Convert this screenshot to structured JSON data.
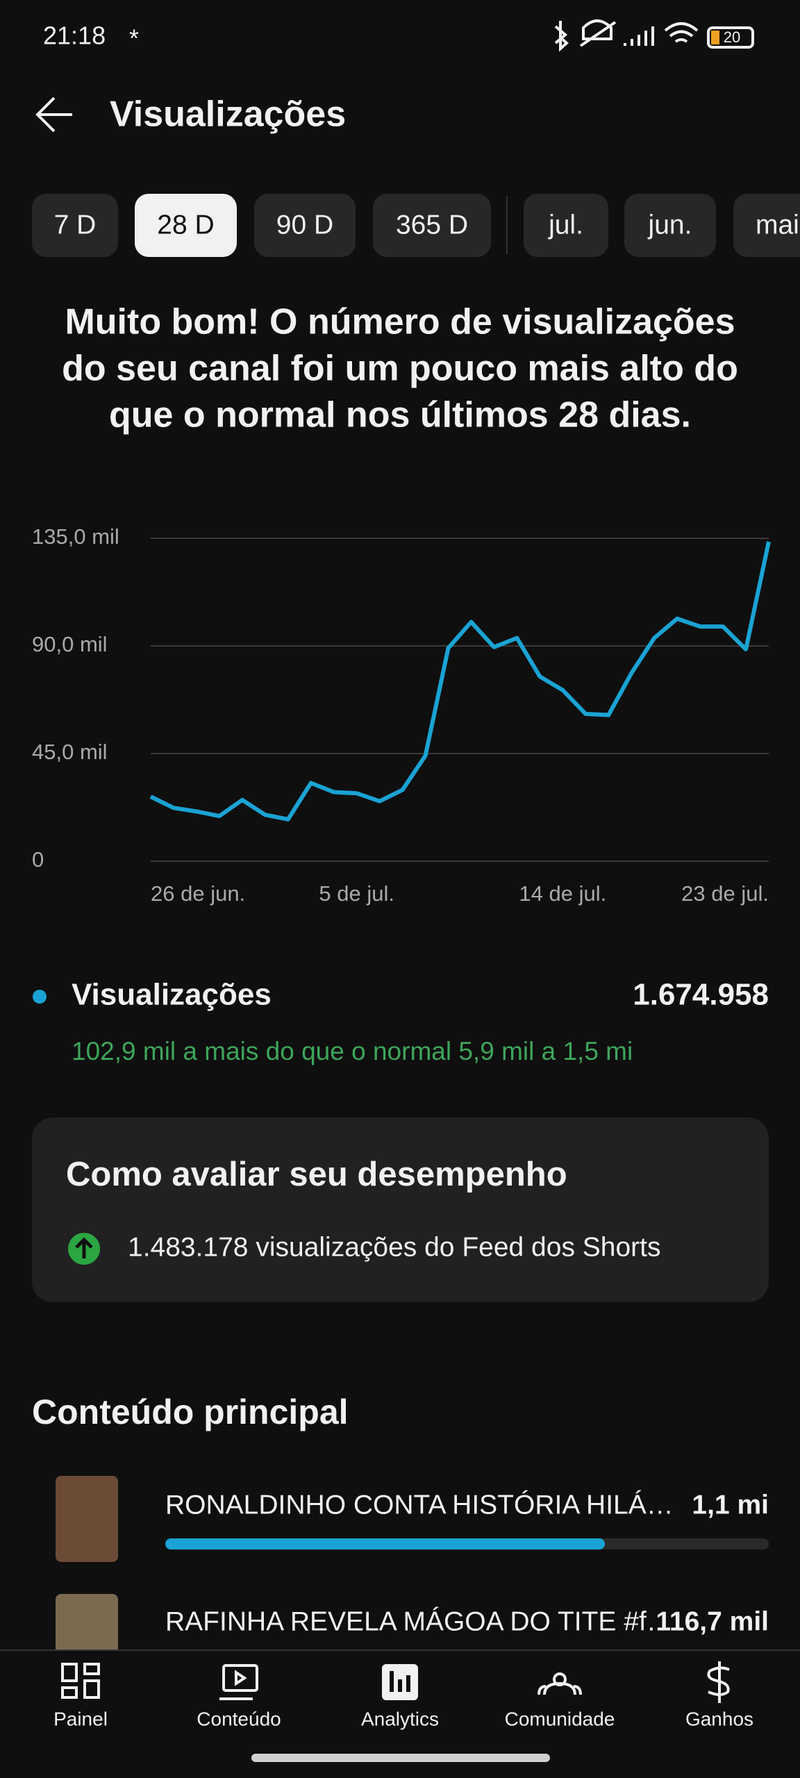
{
  "status_bar": {
    "time": "21:18",
    "battery": "20"
  },
  "header": {
    "title": "Visualizações"
  },
  "period_chips": [
    "7 D",
    "28 D",
    "90 D",
    "365 D",
    "jul.",
    "jun.",
    "mai"
  ],
  "headline": [
    "Muito bom! O número de visualizações",
    "do seu canal foi um pouco mais alto do",
    "que o normal nos últimos 28 dias."
  ],
  "chart_data": {
    "type": "line",
    "categories": [
      "26 de jun.",
      null,
      null,
      null,
      null,
      null,
      null,
      null,
      null,
      "5 de jul.",
      null,
      null,
      null,
      null,
      null,
      null,
      null,
      null,
      "14 de jul.",
      null,
      null,
      null,
      null,
      null,
      null,
      null,
      null,
      "23 de jul."
    ],
    "series": [
      {
        "name": "Visualizações",
        "color": "#1aa3d4",
        "values": [
          27.0,
          22.3,
          20.8,
          18.9,
          25.6,
          19.4,
          17.5,
          32.7,
          28.9,
          28.4,
          25.1,
          29.8,
          44.1,
          89.1,
          100.0,
          89.5,
          93.3,
          77.2,
          71.5,
          61.6,
          61.1,
          78.6,
          93.3,
          101.4,
          98.1,
          98.1,
          88.6,
          133.6
        ]
      }
    ],
    "ylim": [
      0,
      135
    ],
    "yticks": [
      0,
      {
        "value": 45,
        "label": "45,0 mil"
      },
      {
        "value": 90,
        "label": "90,0 mil"
      },
      {
        "value": 135,
        "label": "135,0 mil"
      }
    ],
    "grid": true
  },
  "summary": {
    "total": "1.674.958",
    "comparison": "102,9 mil a mais do que o normal 5,9 mil a 1,5 mi"
  },
  "card": {
    "title": "Como avaliar seu desempenho",
    "item": "1.483.178 visualizações do Feed dos Shorts"
  },
  "top_content": {
    "title": "Conteúdo principal",
    "items": [
      {
        "title": "RONALDINHO CONTA HISTÓRIA HILÁ…",
        "value": "1,1 mi"
      },
      {
        "title": "RAFINHA REVELA MÁGOA DO TITE #f…",
        "value": "116,7 mil"
      }
    ]
  },
  "nav": [
    "Painel",
    "Conteúdo",
    "Analytics",
    "Comunidade",
    "Ganhos"
  ]
}
